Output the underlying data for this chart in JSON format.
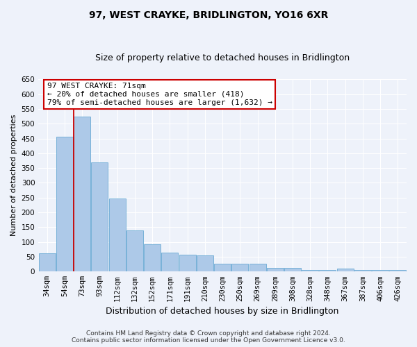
{
  "title": "97, WEST CRAYKE, BRIDLINGTON, YO16 6XR",
  "subtitle": "Size of property relative to detached houses in Bridlington",
  "xlabel": "Distribution of detached houses by size in Bridlington",
  "ylabel": "Number of detached properties",
  "categories": [
    "34sqm",
    "54sqm",
    "73sqm",
    "93sqm",
    "112sqm",
    "132sqm",
    "152sqm",
    "171sqm",
    "191sqm",
    "210sqm",
    "230sqm",
    "250sqm",
    "269sqm",
    "289sqm",
    "308sqm",
    "328sqm",
    "348sqm",
    "367sqm",
    "387sqm",
    "406sqm",
    "426sqm"
  ],
  "values": [
    62,
    457,
    523,
    368,
    248,
    140,
    92,
    63,
    56,
    54,
    26,
    26,
    26,
    12,
    12,
    6,
    6,
    9,
    5,
    5,
    5
  ],
  "bar_color": "#adc9e8",
  "bar_edge_color": "#6aaad4",
  "red_line_index": 2,
  "annotation_line1": "97 WEST CRAYKE: 71sqm",
  "annotation_line2": "← 20% of detached houses are smaller (418)",
  "annotation_line3": "79% of semi-detached houses are larger (1,632) →",
  "annotation_box_color": "#ffffff",
  "annotation_box_edge": "#cc0000",
  "footer_line1": "Contains HM Land Registry data © Crown copyright and database right 2024.",
  "footer_line2": "Contains public sector information licensed under the Open Government Licence v3.0.",
  "ylim": [
    0,
    650
  ],
  "yticks": [
    0,
    50,
    100,
    150,
    200,
    250,
    300,
    350,
    400,
    450,
    500,
    550,
    600,
    650
  ],
  "background_color": "#eef2fa",
  "plot_background": "#eef2fa",
  "grid_color": "#ffffff",
  "title_fontsize": 10,
  "subtitle_fontsize": 9,
  "ylabel_fontsize": 8,
  "xlabel_fontsize": 9,
  "tick_fontsize": 7.5,
  "annotation_fontsize": 8,
  "footer_fontsize": 6.5
}
